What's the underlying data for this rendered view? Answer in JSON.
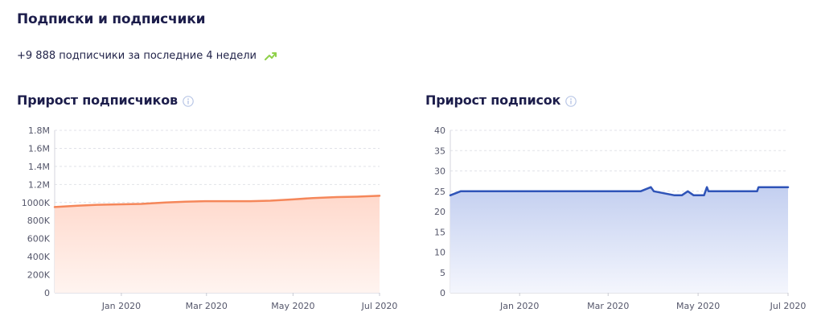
{
  "header": {
    "title": "Подписки и подписчики",
    "summary": "+9 888 подписчики за последние 4 недели"
  },
  "icons": {
    "trend": "trend-up-icon",
    "info": "info-icon"
  },
  "colors": {
    "subscribers_line": "#f5875a",
    "subscriptions_line": "#2f54b8",
    "trend": "#8fd14a",
    "grid": "#dcdde3"
  },
  "chart_data": [
    {
      "type": "area",
      "title": "Прирост подписчиков",
      "y_ticks": [
        "0",
        "200K",
        "400K",
        "600K",
        "800K",
        "1000K",
        "1.2M",
        "1.4M",
        "1.6M",
        "1.8M"
      ],
      "x_ticks": [
        "Jan 2020",
        "Mar 2020",
        "May 2020",
        "Jul 2020"
      ],
      "ylim": [
        0,
        1800000
      ],
      "x": [
        "2019-11-15",
        "2019-12-01",
        "2019-12-15",
        "2020-01-01",
        "2020-01-15",
        "2020-02-01",
        "2020-02-15",
        "2020-03-01",
        "2020-03-15",
        "2020-04-01",
        "2020-04-15",
        "2020-05-01",
        "2020-05-15",
        "2020-06-01",
        "2020-06-15",
        "2020-07-01"
      ],
      "series": [
        {
          "values": [
            950000,
            965000,
            975000,
            980000,
            985000,
            1000000,
            1010000,
            1015000,
            1015000,
            1015000,
            1020000,
            1035000,
            1050000,
            1060000,
            1065000,
            1075000
          ]
        }
      ],
      "grid": true
    },
    {
      "type": "area",
      "title": "Прирост подписок",
      "y_ticks": [
        "0",
        "5",
        "10",
        "15",
        "20",
        "25",
        "30",
        "35",
        "40"
      ],
      "x_ticks": [
        "Jan 2020",
        "Mar 2020",
        "May 2020",
        "Jul 2020"
      ],
      "ylim": [
        0,
        40
      ],
      "x": [
        "2019-11-15",
        "2019-11-22",
        "2020-03-23",
        "2020-03-30",
        "2020-04-01",
        "2020-04-15",
        "2020-04-20",
        "2020-04-24",
        "2020-04-28",
        "2020-05-05",
        "2020-05-07",
        "2020-05-08",
        "2020-06-10",
        "2020-06-11",
        "2020-07-01"
      ],
      "series": [
        {
          "values": [
            24,
            25,
            25,
            26,
            25,
            24,
            24,
            25,
            24,
            24,
            26,
            25,
            25,
            26,
            26
          ]
        }
      ],
      "grid": true
    }
  ]
}
